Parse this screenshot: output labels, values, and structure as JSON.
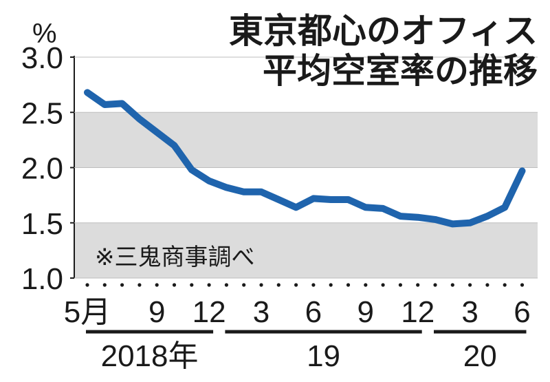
{
  "chart_data": {
    "type": "line",
    "title_lines": [
      "東京都心のオフィス",
      "平均空室率の推移"
    ],
    "unit": "%",
    "note": "※三鬼商事調べ",
    "ylim": [
      1.0,
      3.0
    ],
    "yticks": [
      "3.0",
      "2.5",
      "2.0",
      "1.5",
      "1.0"
    ],
    "bands": [
      [
        2.0,
        2.5
      ],
      [
        1.0,
        1.5
      ]
    ],
    "x": [
      "2018-05",
      "2018-06",
      "2018-07",
      "2018-08",
      "2018-09",
      "2018-10",
      "2018-11",
      "2018-12",
      "2019-01",
      "2019-02",
      "2019-03",
      "2019-04",
      "2019-05",
      "2019-06",
      "2019-07",
      "2019-08",
      "2019-09",
      "2019-10",
      "2019-11",
      "2019-12",
      "2020-01",
      "2020-02",
      "2020-03",
      "2020-04",
      "2020-05",
      "2020-06"
    ],
    "values": [
      2.68,
      2.57,
      2.58,
      2.44,
      2.32,
      2.2,
      1.98,
      1.88,
      1.82,
      1.78,
      1.78,
      1.71,
      1.64,
      1.72,
      1.71,
      1.71,
      1.64,
      1.63,
      1.56,
      1.55,
      1.53,
      1.49,
      1.5,
      1.56,
      1.64,
      1.97
    ],
    "xtick_labels": [
      {
        "month": "2018-05",
        "label": "5月"
      },
      {
        "month": "2018-09",
        "label": "9"
      },
      {
        "month": "2018-12",
        "label": "12"
      },
      {
        "month": "2019-03",
        "label": "3"
      },
      {
        "month": "2019-06",
        "label": "6"
      },
      {
        "month": "2019-09",
        "label": "9"
      },
      {
        "month": "2019-12",
        "label": "12"
      },
      {
        "month": "2020-03",
        "label": "3"
      },
      {
        "month": "2020-06",
        "label": "6"
      }
    ],
    "years": [
      {
        "label": "2018年",
        "from": "2018-05",
        "to": "2018-12"
      },
      {
        "label": "19",
        "from": "2019-01",
        "to": "2019-12"
      },
      {
        "label": "20",
        "from": "2020-01",
        "to": "2020-06"
      }
    ],
    "colors": {
      "line": "#1f64ad",
      "band": "#dcdcdc",
      "text": "#1a1a1a"
    }
  }
}
